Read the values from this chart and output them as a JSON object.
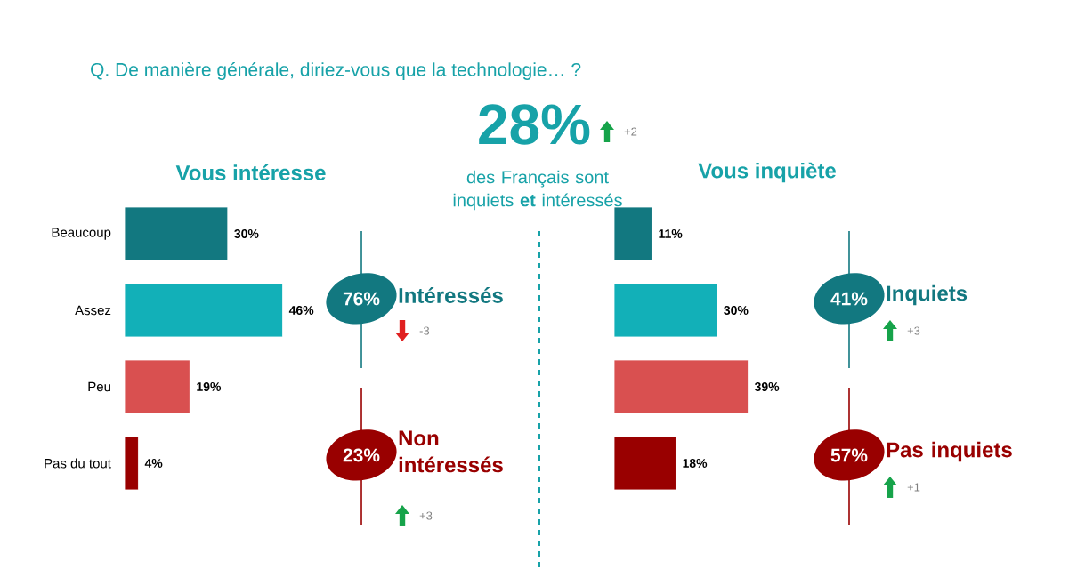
{
  "chart_data": [
    {
      "type": "other",
      "title": "Q. De manière générale, diriez-vous que la technologie… ?",
      "annotations": [
        "28%",
        "+2",
        "des Français sont inquiets **et** intéressés"
      ]
    },
    {
      "type": "bar",
      "orientation": "horizontal",
      "title": "Vous intéresse",
      "categories": [
        "Beaucoup",
        "Assez",
        "Peu",
        "Pas du tout"
      ],
      "values": [
        30,
        46,
        19,
        4
      ],
      "value_labels": [
        "30%",
        "46%",
        "19%",
        "4%"
      ],
      "colors": [
        "#127880",
        "#12b0b8",
        "#d95050",
        "#990000"
      ],
      "tick_labels": "y",
      "annotations": [
        "76%",
        "Intéressés",
        "-3",
        "23%",
        "Non intéressés",
        "+3"
      ]
    },
    {
      "type": "bar",
      "orientation": "horizontal",
      "title": "Vous inquiète",
      "categories": [
        null,
        null,
        null,
        null
      ],
      "values": [
        11,
        30,
        39,
        18
      ],
      "value_labels": [
        "11%",
        "30%",
        "39%",
        "18%"
      ],
      "colors": [
        "#127880",
        "#12b0b8",
        "#d95050",
        "#990000"
      ],
      "tick_labels": false,
      "annotations": [
        "41%",
        "Inquiets",
        "+3",
        "57%",
        "Pas inquiets",
        "+1"
      ]
    }
  ]
}
